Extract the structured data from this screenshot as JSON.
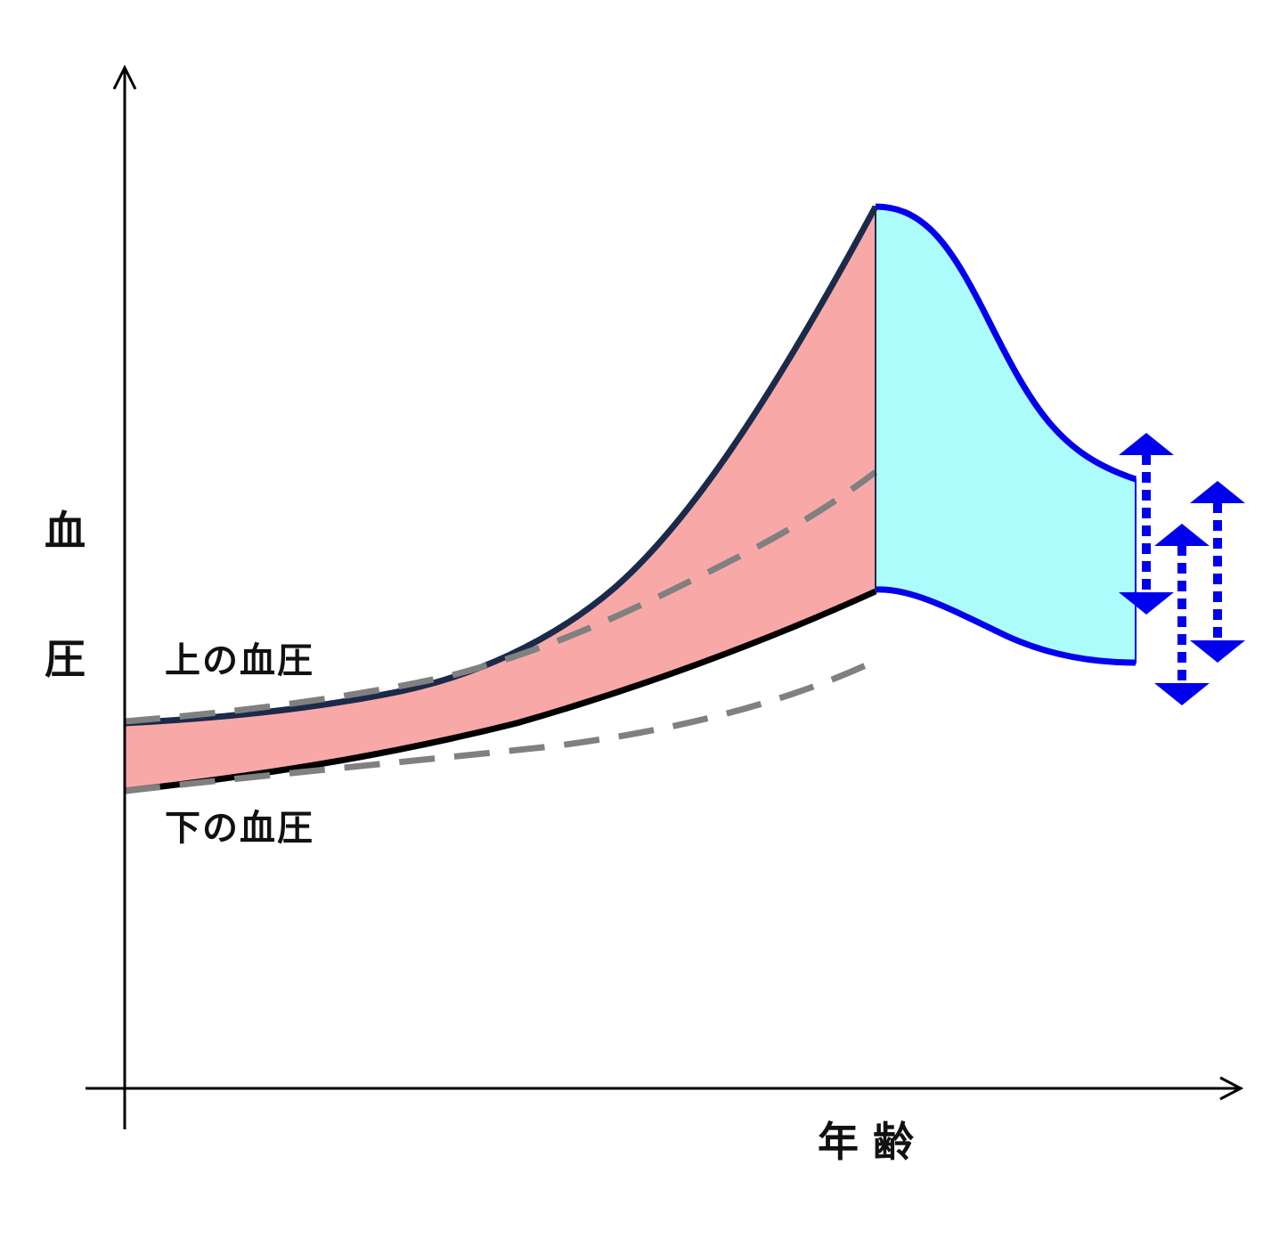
{
  "axes": {
    "y_label_chars": [
      "血",
      "圧"
    ],
    "x_label": "年 齢"
  },
  "curve_labels": {
    "upper": "上の血圧",
    "lower": "下の血圧"
  },
  "colors": {
    "axis": "#000000",
    "upper_curve": "#1b2a4a",
    "lower_curve": "#000000",
    "rising_band_fill": "#f9a8a8",
    "after_peak_fill": "#adfcfc",
    "after_peak_curves": "#0000ee",
    "reference_dashed": "#808080",
    "arrows": "#0000ee"
  },
  "icons": {
    "axis_arrowheads": "open-arrowhead",
    "range_arrows": "double-headed-dotted-arrow"
  }
}
